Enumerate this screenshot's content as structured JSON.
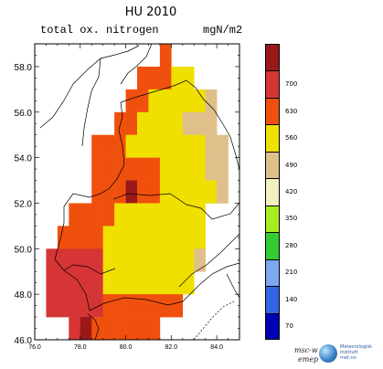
{
  "title": "HU 2010",
  "subtitle_left": "total ox. nitrogen",
  "subtitle_right": "mgN/m2",
  "x_ticks": [
    "76.0",
    "78.0",
    "80.0",
    "82.0",
    "84.0"
  ],
  "y_ticks": [
    "46.0",
    "48.0",
    "50.0",
    "52.0",
    "54.0",
    "56.0",
    "58.0"
  ],
  "legend": {
    "labels": [
      "70",
      "140",
      "210",
      "280",
      "350",
      "420",
      "490",
      "560",
      "630",
      "700"
    ],
    "colors": [
      "#0000b4",
      "#3366e6",
      "#7da8f0",
      "#33cc33",
      "#a6ee22",
      "#f2efc0",
      "#dfbf8a",
      "#f0e000",
      "#f0500d",
      "#d63535",
      "#9a1818"
    ]
  },
  "logos": {
    "msc_line1": "msc-w",
    "msc_line2": "emep",
    "institute_line1": "Meteorologisk",
    "institute_line2": "institutt",
    "institute_line3": "met.no"
  },
  "grid": {
    "rows": [
      {
        "y": 58,
        "cells": [
          [
            81.5,
            "O"
          ]
        ]
      },
      {
        "y": 57,
        "cells": [
          [
            80.5,
            "O"
          ],
          [
            81.0,
            "O"
          ],
          [
            81.5,
            "O"
          ],
          [
            82.0,
            "Y"
          ],
          [
            82.5,
            "Y"
          ]
        ]
      },
      {
        "y": 56,
        "cells": [
          [
            80.0,
            "O"
          ],
          [
            80.5,
            "O"
          ],
          [
            81.0,
            "Y"
          ],
          [
            81.5,
            "Y"
          ],
          [
            82.0,
            "Y"
          ],
          [
            82.5,
            "Y"
          ],
          [
            83.0,
            "Y"
          ],
          [
            83.5,
            "T"
          ]
        ]
      },
      {
        "y": 55,
        "cells": [
          [
            79.5,
            "O"
          ],
          [
            80.0,
            "O"
          ],
          [
            80.5,
            "Y"
          ],
          [
            81.0,
            "Y"
          ],
          [
            81.5,
            "Y"
          ],
          [
            82.0,
            "Y"
          ],
          [
            82.5,
            "T"
          ],
          [
            83.0,
            "T"
          ],
          [
            83.5,
            "T"
          ]
        ]
      },
      {
        "y": 54,
        "cells": [
          [
            78.5,
            "O"
          ],
          [
            79.0,
            "O"
          ],
          [
            79.5,
            "O"
          ],
          [
            80.0,
            "Y"
          ],
          [
            80.5,
            "Y"
          ],
          [
            81.0,
            "Y"
          ],
          [
            81.5,
            "Y"
          ],
          [
            82.0,
            "Y"
          ],
          [
            82.5,
            "Y"
          ],
          [
            83.0,
            "Y"
          ],
          [
            83.5,
            "T"
          ],
          [
            84.0,
            "T"
          ]
        ]
      },
      {
        "y": 53,
        "cells": [
          [
            78.5,
            "O"
          ],
          [
            79.0,
            "O"
          ],
          [
            79.5,
            "O"
          ],
          [
            80.0,
            "O"
          ],
          [
            80.5,
            "O"
          ],
          [
            81.0,
            "O"
          ],
          [
            81.5,
            "Y"
          ],
          [
            82.0,
            "Y"
          ],
          [
            82.5,
            "Y"
          ],
          [
            83.0,
            "Y"
          ],
          [
            83.5,
            "T"
          ],
          [
            84.0,
            "T"
          ]
        ]
      },
      {
        "y": 52,
        "cells": [
          [
            78.5,
            "O"
          ],
          [
            79.0,
            "O"
          ],
          [
            79.5,
            "O"
          ],
          [
            80.0,
            "D"
          ],
          [
            80.5,
            "O"
          ],
          [
            81.0,
            "O"
          ],
          [
            81.5,
            "Y"
          ],
          [
            82.0,
            "Y"
          ],
          [
            82.5,
            "Y"
          ],
          [
            83.0,
            "Y"
          ],
          [
            83.5,
            "Y"
          ],
          [
            84.0,
            "T"
          ]
        ]
      },
      {
        "y": 51,
        "cells": [
          [
            77.5,
            "O"
          ],
          [
            78.0,
            "O"
          ],
          [
            78.5,
            "O"
          ],
          [
            79.0,
            "O"
          ],
          [
            79.5,
            "Y"
          ],
          [
            80.0,
            "Y"
          ],
          [
            80.5,
            "Y"
          ],
          [
            81.0,
            "Y"
          ],
          [
            81.5,
            "Y"
          ],
          [
            82.0,
            "Y"
          ],
          [
            82.5,
            "Y"
          ],
          [
            83.0,
            "Y"
          ]
        ]
      },
      {
        "y": 50,
        "cells": [
          [
            77.0,
            "O"
          ],
          [
            77.5,
            "O"
          ],
          [
            78.0,
            "O"
          ],
          [
            78.5,
            "O"
          ],
          [
            79.0,
            "Y"
          ],
          [
            79.5,
            "Y"
          ],
          [
            80.0,
            "Y"
          ],
          [
            80.5,
            "Y"
          ],
          [
            81.0,
            "Y"
          ],
          [
            81.5,
            "Y"
          ],
          [
            82.0,
            "Y"
          ],
          [
            82.5,
            "Y"
          ],
          [
            83.0,
            "Y"
          ]
        ]
      },
      {
        "y": 49,
        "cells": [
          [
            76.5,
            "R"
          ],
          [
            77.0,
            "R"
          ],
          [
            77.5,
            "R"
          ],
          [
            78.0,
            "R"
          ],
          [
            78.5,
            "R"
          ],
          [
            79.0,
            "Y"
          ],
          [
            79.5,
            "Y"
          ],
          [
            80.0,
            "Y"
          ],
          [
            80.5,
            "Y"
          ],
          [
            81.0,
            "Y"
          ],
          [
            81.5,
            "Y"
          ],
          [
            82.0,
            "Y"
          ],
          [
            82.5,
            "Y"
          ],
          [
            83.0,
            "T"
          ]
        ]
      },
      {
        "y": 48,
        "cells": [
          [
            76.5,
            "R"
          ],
          [
            77.0,
            "R"
          ],
          [
            77.5,
            "R"
          ],
          [
            78.0,
            "R"
          ],
          [
            78.5,
            "R"
          ],
          [
            79.0,
            "Y"
          ],
          [
            79.5,
            "Y"
          ],
          [
            80.0,
            "Y"
          ],
          [
            80.5,
            "Y"
          ],
          [
            81.0,
            "Y"
          ],
          [
            81.5,
            "Y"
          ],
          [
            82.0,
            "Y"
          ],
          [
            82.5,
            "Y"
          ]
        ]
      },
      {
        "y": 47,
        "cells": [
          [
            76.5,
            "R"
          ],
          [
            77.0,
            "R"
          ],
          [
            77.5,
            "R"
          ],
          [
            78.0,
            "R"
          ],
          [
            78.5,
            "R"
          ],
          [
            79.0,
            "O"
          ],
          [
            79.5,
            "O"
          ],
          [
            80.0,
            "O"
          ],
          [
            80.5,
            "O"
          ],
          [
            81.0,
            "O"
          ],
          [
            81.5,
            "O"
          ],
          [
            82.0,
            "O"
          ]
        ]
      },
      {
        "y": 46,
        "cells": [
          [
            77.5,
            "R"
          ],
          [
            78.0,
            "D"
          ],
          [
            78.5,
            "O"
          ],
          [
            79.0,
            "O"
          ],
          [
            79.5,
            "O"
          ],
          [
            80.0,
            "O"
          ],
          [
            80.5,
            "O"
          ],
          [
            81.0,
            "O"
          ]
        ]
      }
    ]
  }
}
